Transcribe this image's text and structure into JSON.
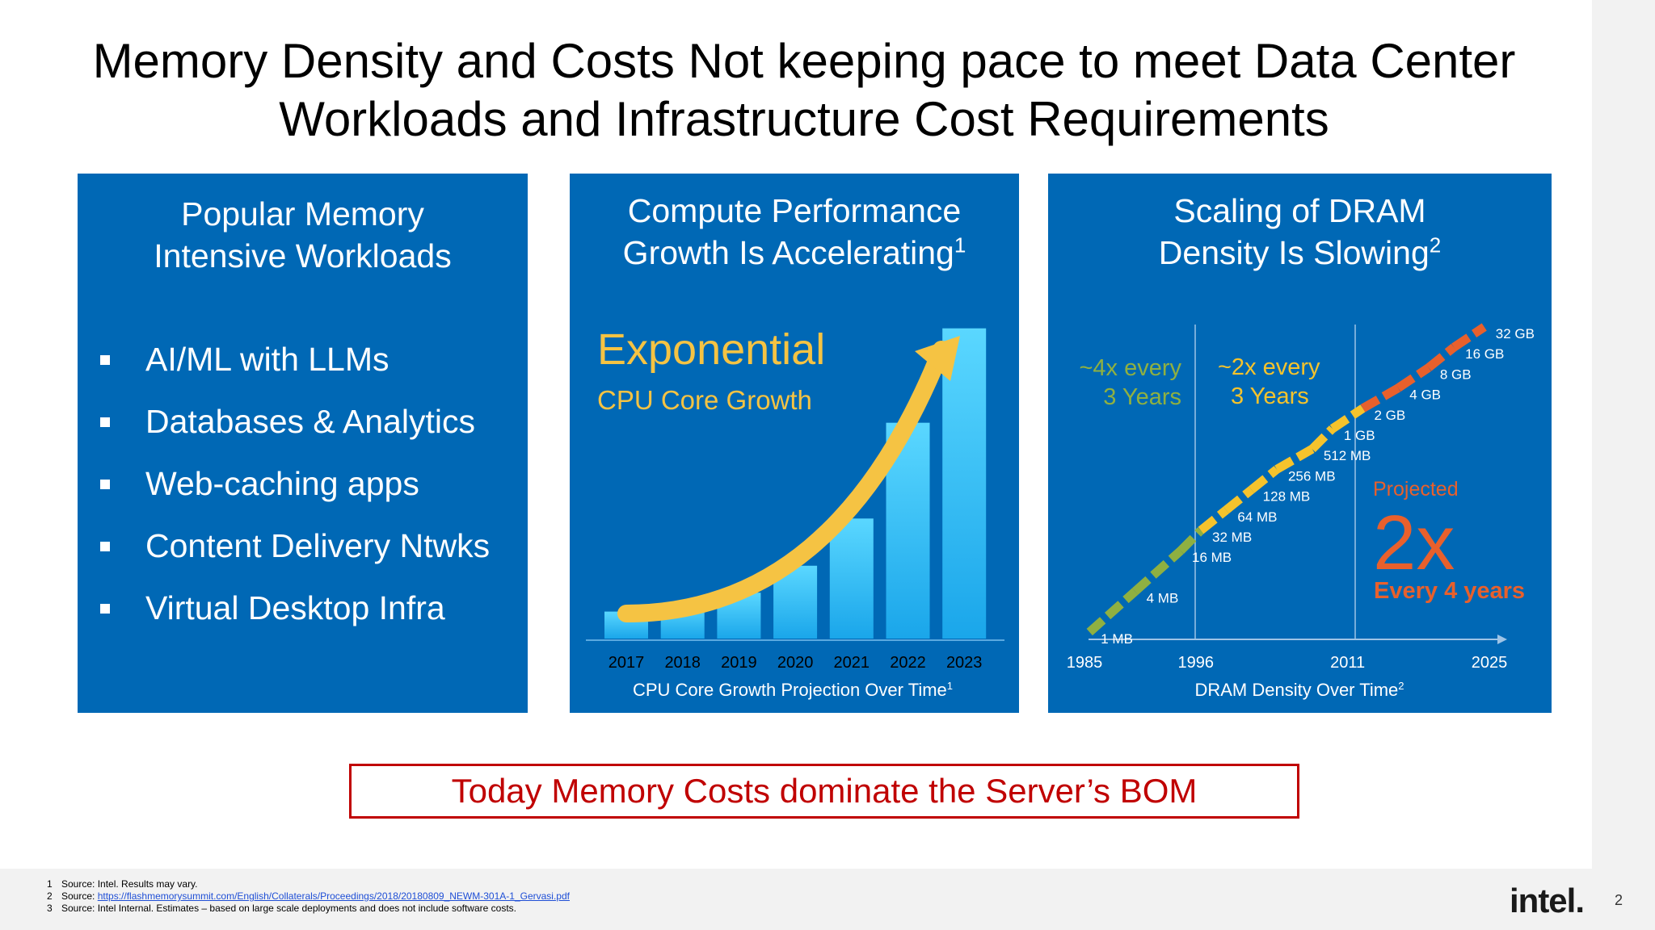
{
  "slide": {
    "title_line1": "Memory Density and Costs Not keeping pace to meet Data Center",
    "title_line2": "Workloads and Infrastructure Cost Requirements",
    "page_number": "2",
    "logo_text": "intel."
  },
  "panel1": {
    "heading_line1": "Popular Memory",
    "heading_line2": "Intensive Workloads",
    "bullets": [
      "AI/ML with LLMs",
      "Databases & Analytics",
      "Web-caching apps",
      "Content Delivery Ntwks",
      "Virtual Desktop Infra"
    ]
  },
  "panel2": {
    "heading_line1": "Compute Performance",
    "heading_line2": "Growth Is Accelerating",
    "heading_sup": "1",
    "overlay_big": "Exponential",
    "overlay_small": "CPU Core Growth",
    "caption": "CPU Core Growth Projection Over Time",
    "caption_sup": "1"
  },
  "panel3": {
    "heading_line1": "Scaling of DRAM",
    "heading_line2": "Density Is Slowing",
    "heading_sup": "2",
    "rate1_line1": "~4x every",
    "rate1_line2": "3 Years",
    "rate2_line1": "~2x every",
    "rate2_line2": "3 Years",
    "projected_label": "Projected",
    "projected_big": "2x",
    "projected_sub": "Every 4 years",
    "caption": "DRAM Density Over Time",
    "caption_sup": "2"
  },
  "callout": {
    "text": "Today Memory Costs dominate the Server’s BOM"
  },
  "footnotes": [
    {
      "num": "1",
      "text": "Source: Intel. Results may vary."
    },
    {
      "num": "2",
      "prefix": "Source: ",
      "link": "https://flashmemorysummit.com/English/Collaterals/Proceedings/2018/20180809_NEWM-301A-1_Gervasi.pdf"
    },
    {
      "num": "3",
      "text": "Source: Intel Internal. Estimates – based on large scale deployments and does not include software costs."
    }
  ],
  "colors": {
    "panel_blue": "#0068b5",
    "bar_top": "#5ad7ff",
    "bar_bottom": "#1aa6ea",
    "arrow_yellow": "#f5c343",
    "dram_green": "#8fb041",
    "dram_yellow": "#f5c32c",
    "dram_orange": "#e8602c",
    "callout_red": "#c00000"
  },
  "chart_data": [
    {
      "type": "bar",
      "categories": [
        "2017",
        "2018",
        "2019",
        "2020",
        "2021",
        "2022",
        "2023"
      ],
      "values": [
        1.0,
        1.27,
        1.7,
        2.7,
        4.45,
        8.0,
        11.5
      ],
      "title": "Compute Performance Growth Is Accelerating",
      "xlabel": "CPU Core Growth Projection Over Time",
      "ylabel": "",
      "ylim": [
        0,
        12
      ],
      "grid": false,
      "annotations": [
        "Exponential",
        "CPU Core Growth"
      ]
    },
    {
      "type": "line",
      "x_ticks": [
        "1985",
        "1996",
        "2011",
        "2025"
      ],
      "xlim": [
        1985,
        2025
      ],
      "yscale": "log",
      "series": [
        {
          "points": [
            {
              "x": 1985.5,
              "label": "1 MB",
              "mb": 1
            },
            {
              "x": 1990,
              "label": "4 MB",
              "mb": 4
            },
            {
              "x": 1994.5,
              "label": "16 MB",
              "mb": 16
            },
            {
              "x": 1996.5,
              "label": "32 MB",
              "mb": 32
            },
            {
              "x": 1999,
              "label": "64 MB",
              "mb": 64
            },
            {
              "x": 2001.5,
              "label": "128 MB",
              "mb": 128
            },
            {
              "x": 2004,
              "label": "256 MB",
              "mb": 256
            },
            {
              "x": 2007.5,
              "label": "512 MB",
              "mb": 512
            },
            {
              "x": 2009.5,
              "label": "1 GB",
              "mb": 1024
            },
            {
              "x": 2012.5,
              "label": "2 GB",
              "mb": 2048
            },
            {
              "x": 2016,
              "label": "4 GB",
              "mb": 4096
            },
            {
              "x": 2019,
              "label": "8 GB",
              "mb": 8192
            },
            {
              "x": 2021.5,
              "label": "16 GB",
              "mb": 16384
            },
            {
              "x": 2024.5,
              "label": "32 GB",
              "mb": 32768
            }
          ]
        }
      ],
      "title": "Scaling of DRAM Density Is Slowing",
      "xlabel": "DRAM Density Over Time",
      "ylabel": "",
      "grid": false,
      "annotations": [
        "~4x every 3 Years",
        "~2x every 3 Years",
        "Projected 2x Every 4 years"
      ]
    }
  ]
}
